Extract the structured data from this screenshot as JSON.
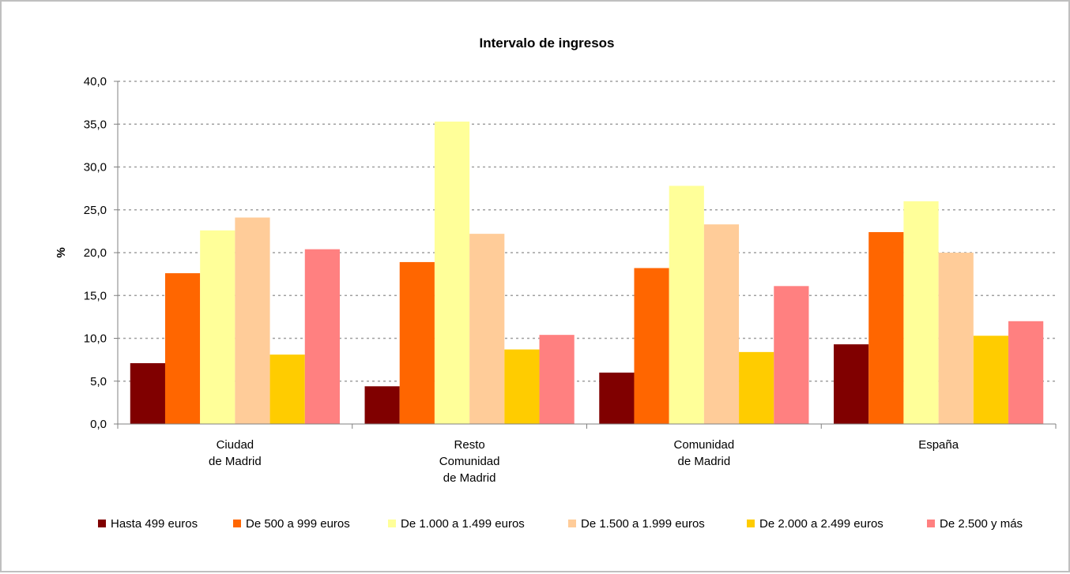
{
  "chart_data": {
    "type": "bar",
    "title": "Intervalo de ingresos",
    "xlabel": "",
    "ylabel": "%",
    "ylim": [
      0,
      40
    ],
    "yticks": [
      "0,0",
      "5,0",
      "10,0",
      "15,0",
      "20,0",
      "25,0",
      "30,0",
      "35,0",
      "40,0"
    ],
    "grid": true,
    "legend_position": "bottom",
    "categories": [
      [
        "Ciudad",
        "de Madrid"
      ],
      [
        "Resto",
        "Comunidad",
        "de Madrid"
      ],
      [
        "Comunidad",
        "de Madrid"
      ],
      [
        "España"
      ]
    ],
    "series": [
      {
        "name": "Hasta 499 euros",
        "color": "#800000",
        "values": [
          7.1,
          4.4,
          6.0,
          9.3
        ]
      },
      {
        "name": "De 500 a 999 euros",
        "color": "#FF6600",
        "values": [
          17.6,
          18.9,
          18.2,
          22.4
        ]
      },
      {
        "name": "De 1.000 a 1.499 euros",
        "color": "#FFFF99",
        "values": [
          22.6,
          35.3,
          27.8,
          26.0
        ]
      },
      {
        "name": "De 1.500 a 1.999 euros",
        "color": "#FFCC99",
        "values": [
          24.1,
          22.2,
          23.3,
          20.0
        ]
      },
      {
        "name": "De 2.000 a 2.499 euros",
        "color": "#FFCC00",
        "values": [
          8.1,
          8.7,
          8.4,
          10.3
        ]
      },
      {
        "name": "De 2.500 y más",
        "color": "#FF8080",
        "values": [
          20.4,
          10.4,
          16.1,
          12.0
        ]
      }
    ]
  }
}
